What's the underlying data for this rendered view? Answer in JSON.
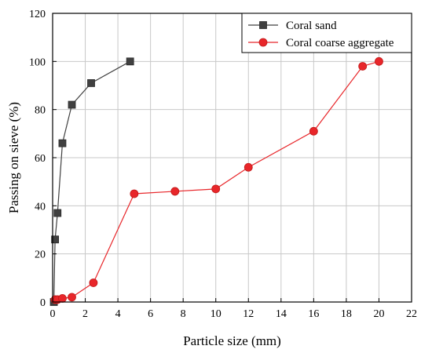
{
  "chart_data": {
    "type": "line",
    "title": "",
    "xlabel": "Particle size (mm)",
    "ylabel": "Passing on sieve (%)",
    "xlim": [
      0,
      22
    ],
    "ylim": [
      0,
      120
    ],
    "xticks": [
      0,
      2,
      4,
      6,
      8,
      10,
      12,
      14,
      16,
      18,
      20,
      22
    ],
    "yticks": [
      0,
      20,
      40,
      60,
      80,
      100,
      120
    ],
    "grid": true,
    "legend_position": "top-right",
    "series": [
      {
        "name": "Coral sand",
        "color": "#404040",
        "marker": "square",
        "x": [
          0.075,
          0.15,
          0.3,
          0.6,
          1.18,
          2.36,
          4.75
        ],
        "y": [
          0,
          26,
          37,
          66,
          82,
          91,
          100
        ]
      },
      {
        "name": "Coral coarse aggregate",
        "color": "#e8262a",
        "marker": "circle",
        "x": [
          0.15,
          0.3,
          0.6,
          1.18,
          2.5,
          5,
          7.5,
          10,
          12,
          16,
          19,
          20
        ],
        "y": [
          1,
          1,
          1.5,
          2,
          8,
          45,
          46,
          47,
          56,
          71,
          98,
          100
        ]
      }
    ]
  }
}
